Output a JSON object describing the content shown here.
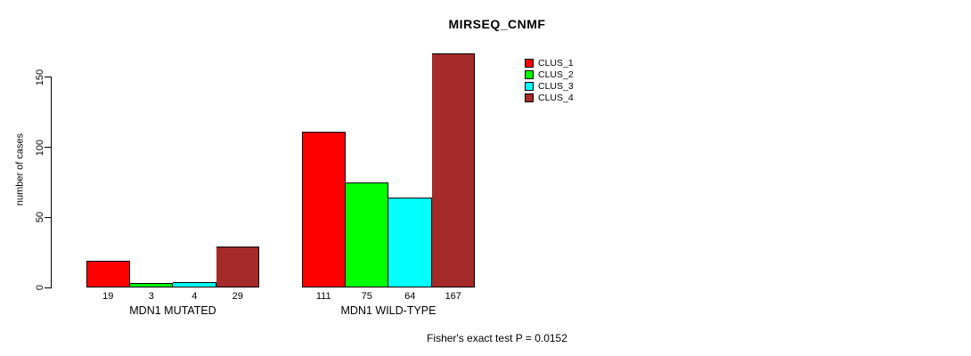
{
  "chart_data": {
    "type": "bar",
    "title": "MIRSEQ_CNMF",
    "ylabel": "number of cases",
    "xlabel": "",
    "ylim": [
      0,
      170
    ],
    "yticks": [
      0,
      50,
      100,
      150
    ],
    "grid": false,
    "legend_position": "top-right",
    "series": [
      {
        "name": "CLUS_1",
        "color": "#FF0000"
      },
      {
        "name": "CLUS_2",
        "color": "#00FF00"
      },
      {
        "name": "CLUS_3",
        "color": "#00FFFF"
      },
      {
        "name": "CLUS_4",
        "color": "#A52A2A"
      }
    ],
    "categories": [
      "MDN1 MUTATED",
      "MDN1 WILD-TYPE"
    ],
    "groups": [
      {
        "label": "MDN1 MUTATED",
        "values": [
          19,
          3,
          4,
          29
        ]
      },
      {
        "label": "MDN1 WILD-TYPE",
        "values": [
          111,
          75,
          64,
          167
        ]
      }
    ],
    "bar_value_labels_shown": true,
    "annotation": "Fisher's exact test P = 0.0152"
  }
}
